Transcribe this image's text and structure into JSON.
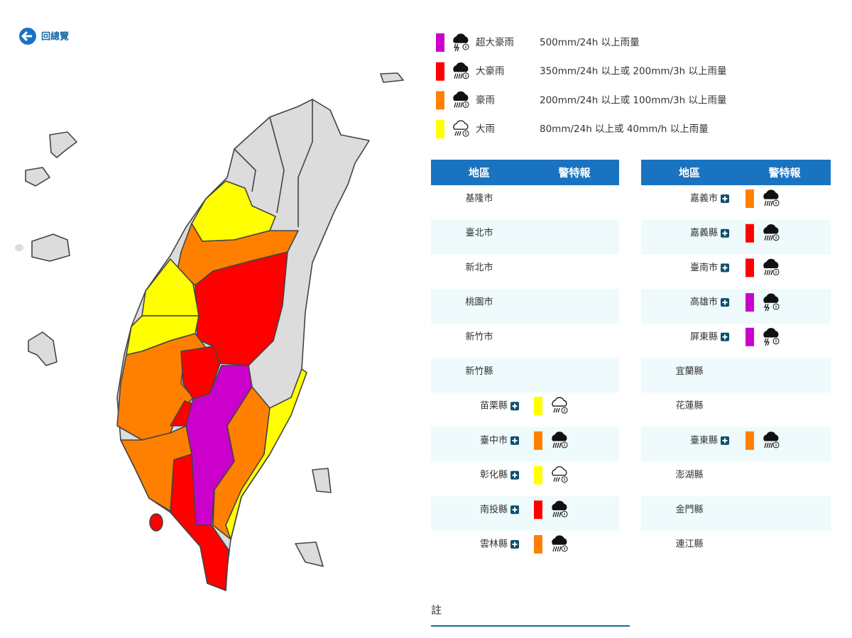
{
  "back_link": "回總覽",
  "legend": [
    {
      "label": "超大豪雨",
      "description": "500mm/24h 以上雨量",
      "color": "#cc00cc",
      "icon": "thunder"
    },
    {
      "label": "大豪雨",
      "description": "350mm/24h 以上或 200mm/3h 以上雨量",
      "color": "#ff0000",
      "icon": "heavy"
    },
    {
      "label": "豪雨",
      "description": "200mm/24h 以上或 100mm/3h 以上雨量",
      "color": "#ff8000",
      "icon": "heavy"
    },
    {
      "label": "大雨",
      "description": "80mm/24h 以上或 40mm/h 以上雨量",
      "color": "#ffff00",
      "icon": "light"
    }
  ],
  "tables": [
    {
      "headers": [
        "地區",
        "警特報"
      ],
      "rows": [
        {
          "name": "基隆市"
        },
        {
          "name": "臺北市"
        },
        {
          "name": "新北市"
        },
        {
          "name": "桃園市"
        },
        {
          "name": "新竹市"
        },
        {
          "name": "新竹縣"
        },
        {
          "name": "苗栗縣",
          "warning": "大雨"
        },
        {
          "name": "臺中市",
          "warning": "豪雨"
        },
        {
          "name": "彰化縣",
          "warning": "大雨"
        },
        {
          "name": "南投縣",
          "warning": "大豪雨"
        },
        {
          "name": "雲林縣",
          "warning": "豪雨"
        }
      ]
    },
    {
      "headers": [
        "地區",
        "警特報"
      ],
      "rows": [
        {
          "name": "嘉義市",
          "warning": "豪雨"
        },
        {
          "name": "嘉義縣",
          "warning": "大豪雨"
        },
        {
          "name": "臺南市",
          "warning": "大豪雨"
        },
        {
          "name": "高雄市",
          "warning": "超大豪雨"
        },
        {
          "name": "屏東縣",
          "warning": "超大豪雨"
        },
        {
          "name": "宜蘭縣"
        },
        {
          "name": "花蓮縣"
        },
        {
          "name": "臺東縣",
          "warning": "豪雨"
        },
        {
          "name": "澎湖縣"
        },
        {
          "name": "金門縣"
        },
        {
          "name": "連江縣"
        }
      ]
    }
  ],
  "note": "註"
}
